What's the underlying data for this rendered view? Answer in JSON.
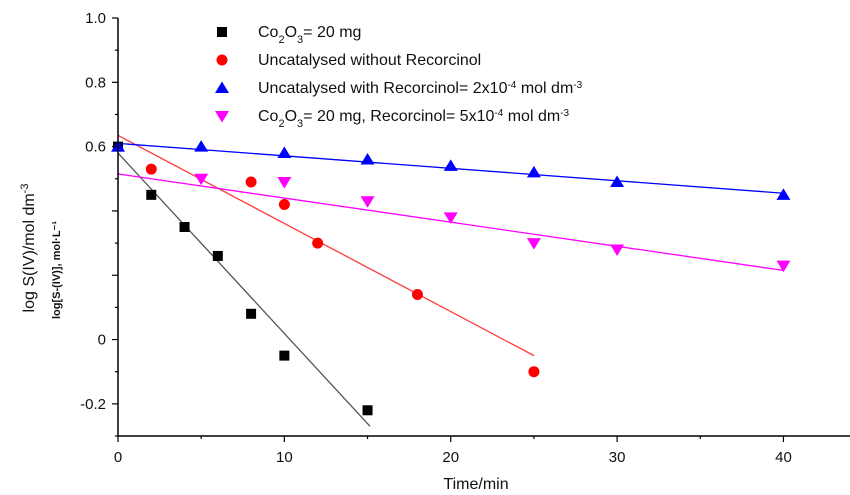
{
  "chart_data": {
    "type": "scatter",
    "xlabel": "Time/min",
    "ylabel": "log S(IV)/mol dm",
    "ylabel_exponent": "-3",
    "ylabel_overlay": "log[S-(IV)], mol·L⁻¹",
    "xlim": [
      0,
      44
    ],
    "ylim": [
      -0.3,
      1.0
    ],
    "xticks": [
      0,
      10,
      20,
      30,
      40
    ],
    "yticks": [
      1.0,
      0.8,
      0.6,
      -0.2
    ],
    "ytick_labels": [
      "1.0",
      "0.8",
      "0.6",
      "-0.2"
    ],
    "yticks_partial": [
      0.0
    ],
    "ytick_partial_labels": [
      "0.0"
    ],
    "grid": false,
    "legend_position": "top",
    "series": [
      {
        "name": "Co2O3= 20 mg",
        "legend": {
          "base": "Co",
          "s1": "2",
          "mid": "O",
          "s2": "3",
          "rest": "= 20 mg"
        },
        "marker": "square",
        "color": "#000000",
        "line_color": "#555555",
        "x": [
          0,
          2,
          4,
          6,
          8,
          10,
          15
        ],
        "y": [
          0.6,
          0.45,
          0.35,
          0.26,
          0.08,
          -0.05,
          -0.22
        ],
        "fit": {
          "x": [
            0,
            15.15
          ],
          "y": [
            0.58,
            -0.27
          ]
        }
      },
      {
        "name": "Uncatalysed without Recorcinol",
        "legend": {
          "text": "Uncatalysed without Recorcinol"
        },
        "marker": "circle",
        "color": "#ff0000",
        "line_color": "#ff3b3b",
        "x": [
          2,
          8,
          10,
          12,
          18,
          25
        ],
        "y": [
          0.53,
          0.49,
          0.42,
          0.3,
          0.14,
          -0.1
        ],
        "fit": {
          "x": [
            0,
            25
          ],
          "y": [
            0.635,
            -0.05
          ]
        }
      },
      {
        "name": "Uncatalysed with Recorcinol= 2x10-4 mol dm-3",
        "legend": {
          "text": "Uncatalysed with Recorcinol= 2x10",
          "sup1": "-4",
          "after": " mol dm",
          "sup2": "-3"
        },
        "marker": "triangle-up",
        "color": "#0000ff",
        "line_color": "#0000ff",
        "x": [
          0,
          5,
          10,
          15,
          20,
          25,
          30,
          40
        ],
        "y": [
          0.6,
          0.6,
          0.58,
          0.56,
          0.54,
          0.52,
          0.49,
          0.45
        ],
        "fit": {
          "x": [
            0,
            40
          ],
          "y": [
            0.61,
            0.455
          ]
        }
      },
      {
        "name": "Co2O3= 20 mg, Recorcinol= 5x10-4 mol dm-3",
        "legend": {
          "base": "Co",
          "s1": "2",
          "mid": "O",
          "s2": "3",
          "rest": "= 20 mg, Recorcinol= 5x10",
          "sup1": "-4",
          "after": " mol dm",
          "sup2": "-3"
        },
        "marker": "triangle-down",
        "color": "#ff00ff",
        "line_color": "#ff00ff",
        "x": [
          5,
          10,
          15,
          20,
          25,
          30,
          40
        ],
        "y": [
          0.5,
          0.49,
          0.43,
          0.38,
          0.3,
          0.28,
          0.23
        ],
        "fit": {
          "x": [
            0,
            40
          ],
          "y": [
            0.515,
            0.215
          ]
        }
      }
    ]
  }
}
